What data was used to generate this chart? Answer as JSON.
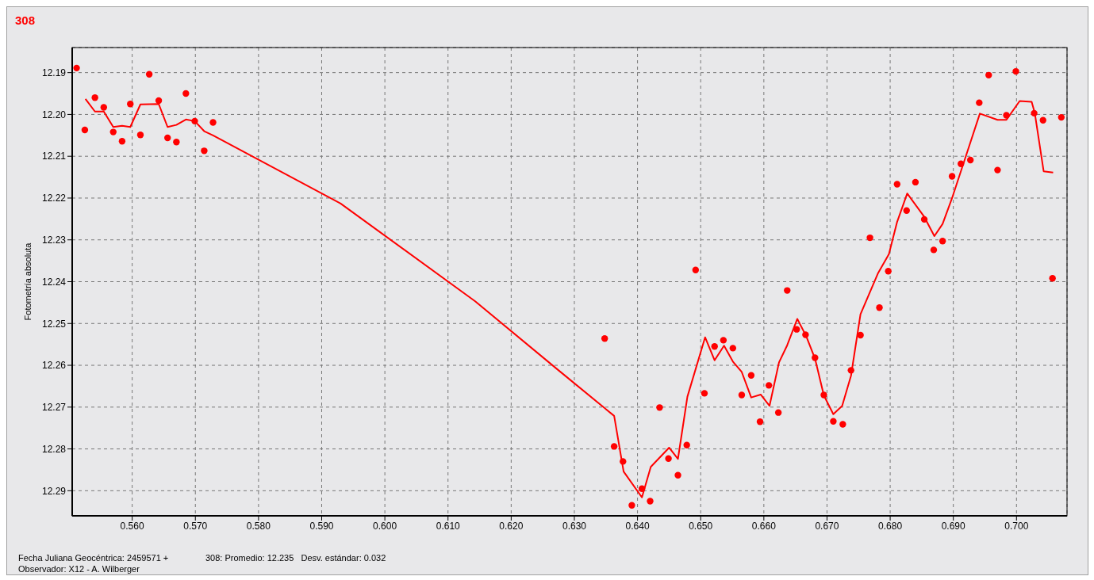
{
  "chart_data": {
    "type": "scatter",
    "title": "308",
    "xlabel": "Fecha Juliana Geocéntrica: 2459571 +",
    "ylabel": "Fotometría absoluta",
    "annotations": [
      "308: Promedio: 12.235   Desv. estándar: 0.032",
      "Observador: X12 - A. Wilberger"
    ],
    "xlim": [
      0.5505,
      0.708
    ],
    "ylim": [
      12.296,
      12.184
    ],
    "xticks": [
      {
        "value": 0.56,
        "label": "0.560"
      },
      {
        "value": 0.57,
        "label": "0.570"
      },
      {
        "value": 0.58,
        "label": "0.580"
      },
      {
        "value": 0.59,
        "label": "0.590"
      },
      {
        "value": 0.6,
        "label": "0.600"
      },
      {
        "value": 0.61,
        "label": "0.610"
      },
      {
        "value": 0.62,
        "label": "0.620"
      },
      {
        "value": 0.63,
        "label": "0.630"
      },
      {
        "value": 0.64,
        "label": "0.640"
      },
      {
        "value": 0.65,
        "label": "0.650"
      },
      {
        "value": 0.66,
        "label": "0.660"
      },
      {
        "value": 0.67,
        "label": "0.670"
      },
      {
        "value": 0.68,
        "label": "0.680"
      },
      {
        "value": 0.69,
        "label": "0.690"
      },
      {
        "value": 0.7,
        "label": "0.700"
      }
    ],
    "yticks": [
      12.19,
      {
        "value": 12.2,
        "label": "12.20"
      },
      12.21,
      12.22,
      12.23,
      12.24,
      12.25,
      12.26,
      12.27,
      12.28,
      12.29
    ],
    "grid": true,
    "series": [
      {
        "color": "#ff0000",
        "marker": "circle",
        "x": [
          0.5512,
          0.5525,
          0.5541,
          0.5555,
          0.557,
          0.5584,
          0.5597,
          0.5613,
          0.5627,
          0.5642,
          0.5656,
          0.567,
          0.5685,
          0.5699,
          0.5714,
          0.5728,
          0.6348,
          0.6363,
          0.6377,
          0.6391,
          0.6407,
          0.642,
          0.6435,
          0.6449,
          0.6464,
          0.6478,
          0.6492,
          0.6506,
          0.6522,
          0.6536,
          0.6551,
          0.6565,
          0.658,
          0.6594,
          0.6608,
          0.6623,
          0.6637,
          0.6652,
          0.6666,
          0.6681,
          0.6695,
          0.671,
          0.6725,
          0.6738,
          0.6753,
          0.6768,
          0.6783,
          0.6797,
          0.6811,
          0.6826,
          0.684,
          0.6854,
          0.6869,
          0.6883,
          0.6898,
          0.6912,
          0.6927,
          0.6941,
          0.6956,
          0.697,
          0.6984,
          0.6999,
          0.7028,
          0.7042,
          0.7057,
          0.7071
        ],
        "values": [
          12.1889,
          12.2037,
          12.196,
          12.1983,
          12.2042,
          12.2064,
          12.1975,
          12.2049,
          12.1904,
          12.1967,
          12.2056,
          12.2066,
          12.195,
          12.2016,
          12.2087,
          12.2019,
          12.2536,
          12.2794,
          12.283,
          12.2935,
          12.2895,
          12.2925,
          12.2701,
          12.2823,
          12.2863,
          12.2791,
          12.2372,
          12.2667,
          12.2555,
          12.254,
          12.2559,
          12.2671,
          12.2624,
          12.2735,
          12.2648,
          12.2713,
          12.2421,
          12.2514,
          12.2527,
          12.2582,
          12.2671,
          12.2734,
          12.2741,
          12.2612,
          12.2528,
          12.2295,
          12.2462,
          12.2375,
          12.2167,
          12.223,
          12.2162,
          12.2251,
          12.2324,
          12.2303,
          12.2148,
          12.2118,
          12.2109,
          12.1972,
          12.1906,
          12.2133,
          12.2002,
          12.1897,
          12.1997,
          12.2014,
          12.2392,
          12.2007
        ]
      },
      {
        "type": "line",
        "color": "#ff0000",
        "marker": "none",
        "x": [
          0.5526,
          0.5541,
          0.5555,
          0.557,
          0.5584,
          0.5597,
          0.5613,
          0.5642,
          0.5656,
          0.567,
          0.5685,
          0.5699,
          0.5714,
          0.5728,
          0.593,
          0.6143,
          0.6275,
          0.6363,
          0.6378,
          0.6407,
          0.6421,
          0.645,
          0.6464,
          0.6479,
          0.6507,
          0.6522,
          0.6537,
          0.6551,
          0.6565,
          0.658,
          0.6595,
          0.6609,
          0.6624,
          0.6637,
          0.6653,
          0.6667,
          0.6681,
          0.6695,
          0.671,
          0.6724,
          0.6738,
          0.6753,
          0.6781,
          0.6798,
          0.6811,
          0.6827,
          0.6854,
          0.687,
          0.6883,
          0.6898,
          0.6927,
          0.6942,
          0.697,
          0.6984,
          0.7005,
          0.7024,
          0.7029,
          0.7043,
          0.7058
        ],
        "values": [
          12.1963,
          12.1993,
          12.1993,
          12.203,
          12.2027,
          12.203,
          12.1976,
          12.1975,
          12.203,
          12.2025,
          12.2012,
          12.2016,
          12.204,
          12.205,
          12.2213,
          12.2447,
          12.2612,
          12.2721,
          12.2854,
          12.2916,
          12.2843,
          12.2797,
          12.2824,
          12.2675,
          12.2533,
          12.2588,
          12.2553,
          12.2591,
          12.2616,
          12.2677,
          12.267,
          12.2697,
          12.2593,
          12.2552,
          12.2489,
          12.253,
          12.2584,
          12.2672,
          12.2717,
          12.2697,
          12.2625,
          12.2478,
          12.2379,
          12.2334,
          12.2257,
          12.2189,
          12.2245,
          12.2291,
          12.2262,
          12.22,
          12.2067,
          12.1998,
          12.2013,
          12.2013,
          12.1968,
          12.197,
          12.1997,
          12.2136,
          12.2139
        ]
      }
    ]
  }
}
